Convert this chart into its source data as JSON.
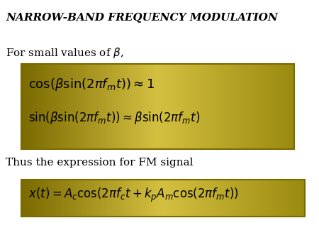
{
  "title": "NARROW-BAND FREQUENCY MODULATION",
  "subtitle": "For small values of $\\beta$,",
  "box1_eq1": "$\\cos(\\beta\\sin(2\\pi f_m t)) \\approx 1$",
  "box1_eq2": "$\\sin(\\beta\\sin(2\\pi f_m t)) \\approx \\beta\\sin(2\\pi f_m t)$",
  "text2": "Thus the expression for FM signal",
  "box2_eq": "$x(t) = A_c\\cos(2\\pi f_c t + k_p A_m\\cos(2\\pi f_m t))$",
  "bg_color": "#ffffff",
  "box_edge_color": "#7a6a00",
  "title_color": "#000000",
  "eq_color": "#000000",
  "text_color": "#000000",
  "title_fontsize": 11,
  "text_fontsize": 11,
  "eq1_fontsize": 13,
  "eq2_fontsize": 12
}
